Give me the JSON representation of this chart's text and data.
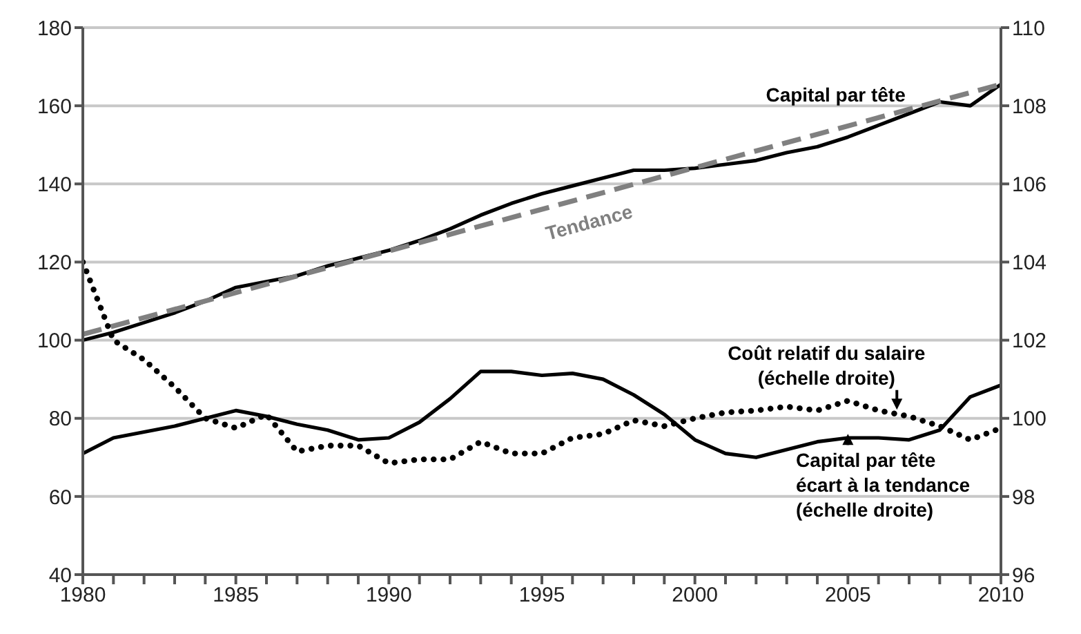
{
  "chart_data": {
    "type": "line",
    "x": [
      1980,
      1981,
      1982,
      1983,
      1984,
      1985,
      1986,
      1987,
      1988,
      1989,
      1990,
      1991,
      1992,
      1993,
      1994,
      1995,
      1996,
      1997,
      1998,
      1999,
      2000,
      2001,
      2002,
      2003,
      2004,
      2005,
      2006,
      2007,
      2008,
      2009,
      2010
    ],
    "xlim": [
      1980,
      2010
    ],
    "xticks": [
      1980,
      {
        "value": 1981,
        "label": null
      },
      {
        "value": 1982,
        "label": null
      },
      {
        "value": 1983,
        "label": null
      },
      {
        "value": 1984,
        "label": null
      },
      1985,
      {
        "value": 1986,
        "label": null
      },
      {
        "value": 1987,
        "label": null
      },
      {
        "value": 1988,
        "label": null
      },
      {
        "value": 1989,
        "label": null
      },
      1990,
      {
        "value": 1991,
        "label": null
      },
      {
        "value": 1992,
        "label": null
      },
      {
        "value": 1993,
        "label": null
      },
      {
        "value": 1994,
        "label": null
      },
      1995,
      {
        "value": 1996,
        "label": null
      },
      {
        "value": 1997,
        "label": null
      },
      {
        "value": 1998,
        "label": null
      },
      {
        "value": 1999,
        "label": null
      },
      2000,
      {
        "value": 2001,
        "label": null
      },
      {
        "value": 2002,
        "label": null
      },
      {
        "value": 2003,
        "label": null
      },
      {
        "value": 2004,
        "label": null
      },
      2005,
      {
        "value": 2006,
        "label": null
      },
      {
        "value": 2007,
        "label": null
      },
      {
        "value": 2008,
        "label": null
      },
      {
        "value": 2009,
        "label": null
      },
      2010
    ],
    "ylim": [
      40,
      180
    ],
    "yticks": [
      40,
      60,
      80,
      100,
      120,
      140,
      160,
      180
    ],
    "y2lim": [
      96,
      110
    ],
    "y2ticks": [
      96,
      98,
      100,
      102,
      104,
      106,
      108,
      110
    ],
    "grid": "y",
    "legend": false,
    "series": [
      {
        "name": "Capital par tête",
        "color": "#000000",
        "line_style": "solid",
        "values": [
          100,
          102,
          104.5,
          107,
          110,
          113.5,
          115,
          116.5,
          119,
          121,
          123,
          125.5,
          128.5,
          132,
          135,
          137.5,
          139.5,
          141.5,
          143.5,
          143.5,
          144,
          145,
          146,
          148,
          149.5,
          152,
          155,
          158,
          161,
          160,
          165.5
        ]
      },
      {
        "name": "Tendance",
        "color": "#808080",
        "line_style": "dashed",
        "x": [
          1980,
          2010
        ],
        "values": [
          101.5,
          165.5
        ]
      },
      {
        "name": "Coût relatif du salaire (échelle droite)",
        "color": "#000000",
        "line_style": "dotted",
        "axis": "y2",
        "values": [
          104,
          102,
          101.5,
          100.8,
          100,
          99.75,
          100.1,
          99.15,
          99.3,
          99.3,
          98.85,
          98.95,
          98.95,
          99.4,
          99.1,
          99.1,
          99.5,
          99.6,
          99.95,
          99.8,
          100,
          100.15,
          100.2,
          100.3,
          100.2,
          100.45,
          100.2,
          100.05,
          99.8,
          99.45,
          99.75
        ]
      },
      {
        "name": "Capital par tête écart à la tendance (échelle droite)",
        "color": "#000000",
        "line_style": "solid",
        "axis": "y2",
        "values": [
          99.1,
          99.5,
          99.65,
          99.8,
          100,
          100.2,
          100.05,
          99.85,
          99.7,
          99.45,
          99.5,
          99.9,
          100.5,
          101.2,
          101.2,
          101.1,
          101.15,
          101,
          100.6,
          100.1,
          99.45,
          99.1,
          99,
          99.2,
          99.4,
          99.5,
          99.5,
          99.45,
          99.7,
          100.55,
          100.85
        ]
      }
    ]
  }
}
